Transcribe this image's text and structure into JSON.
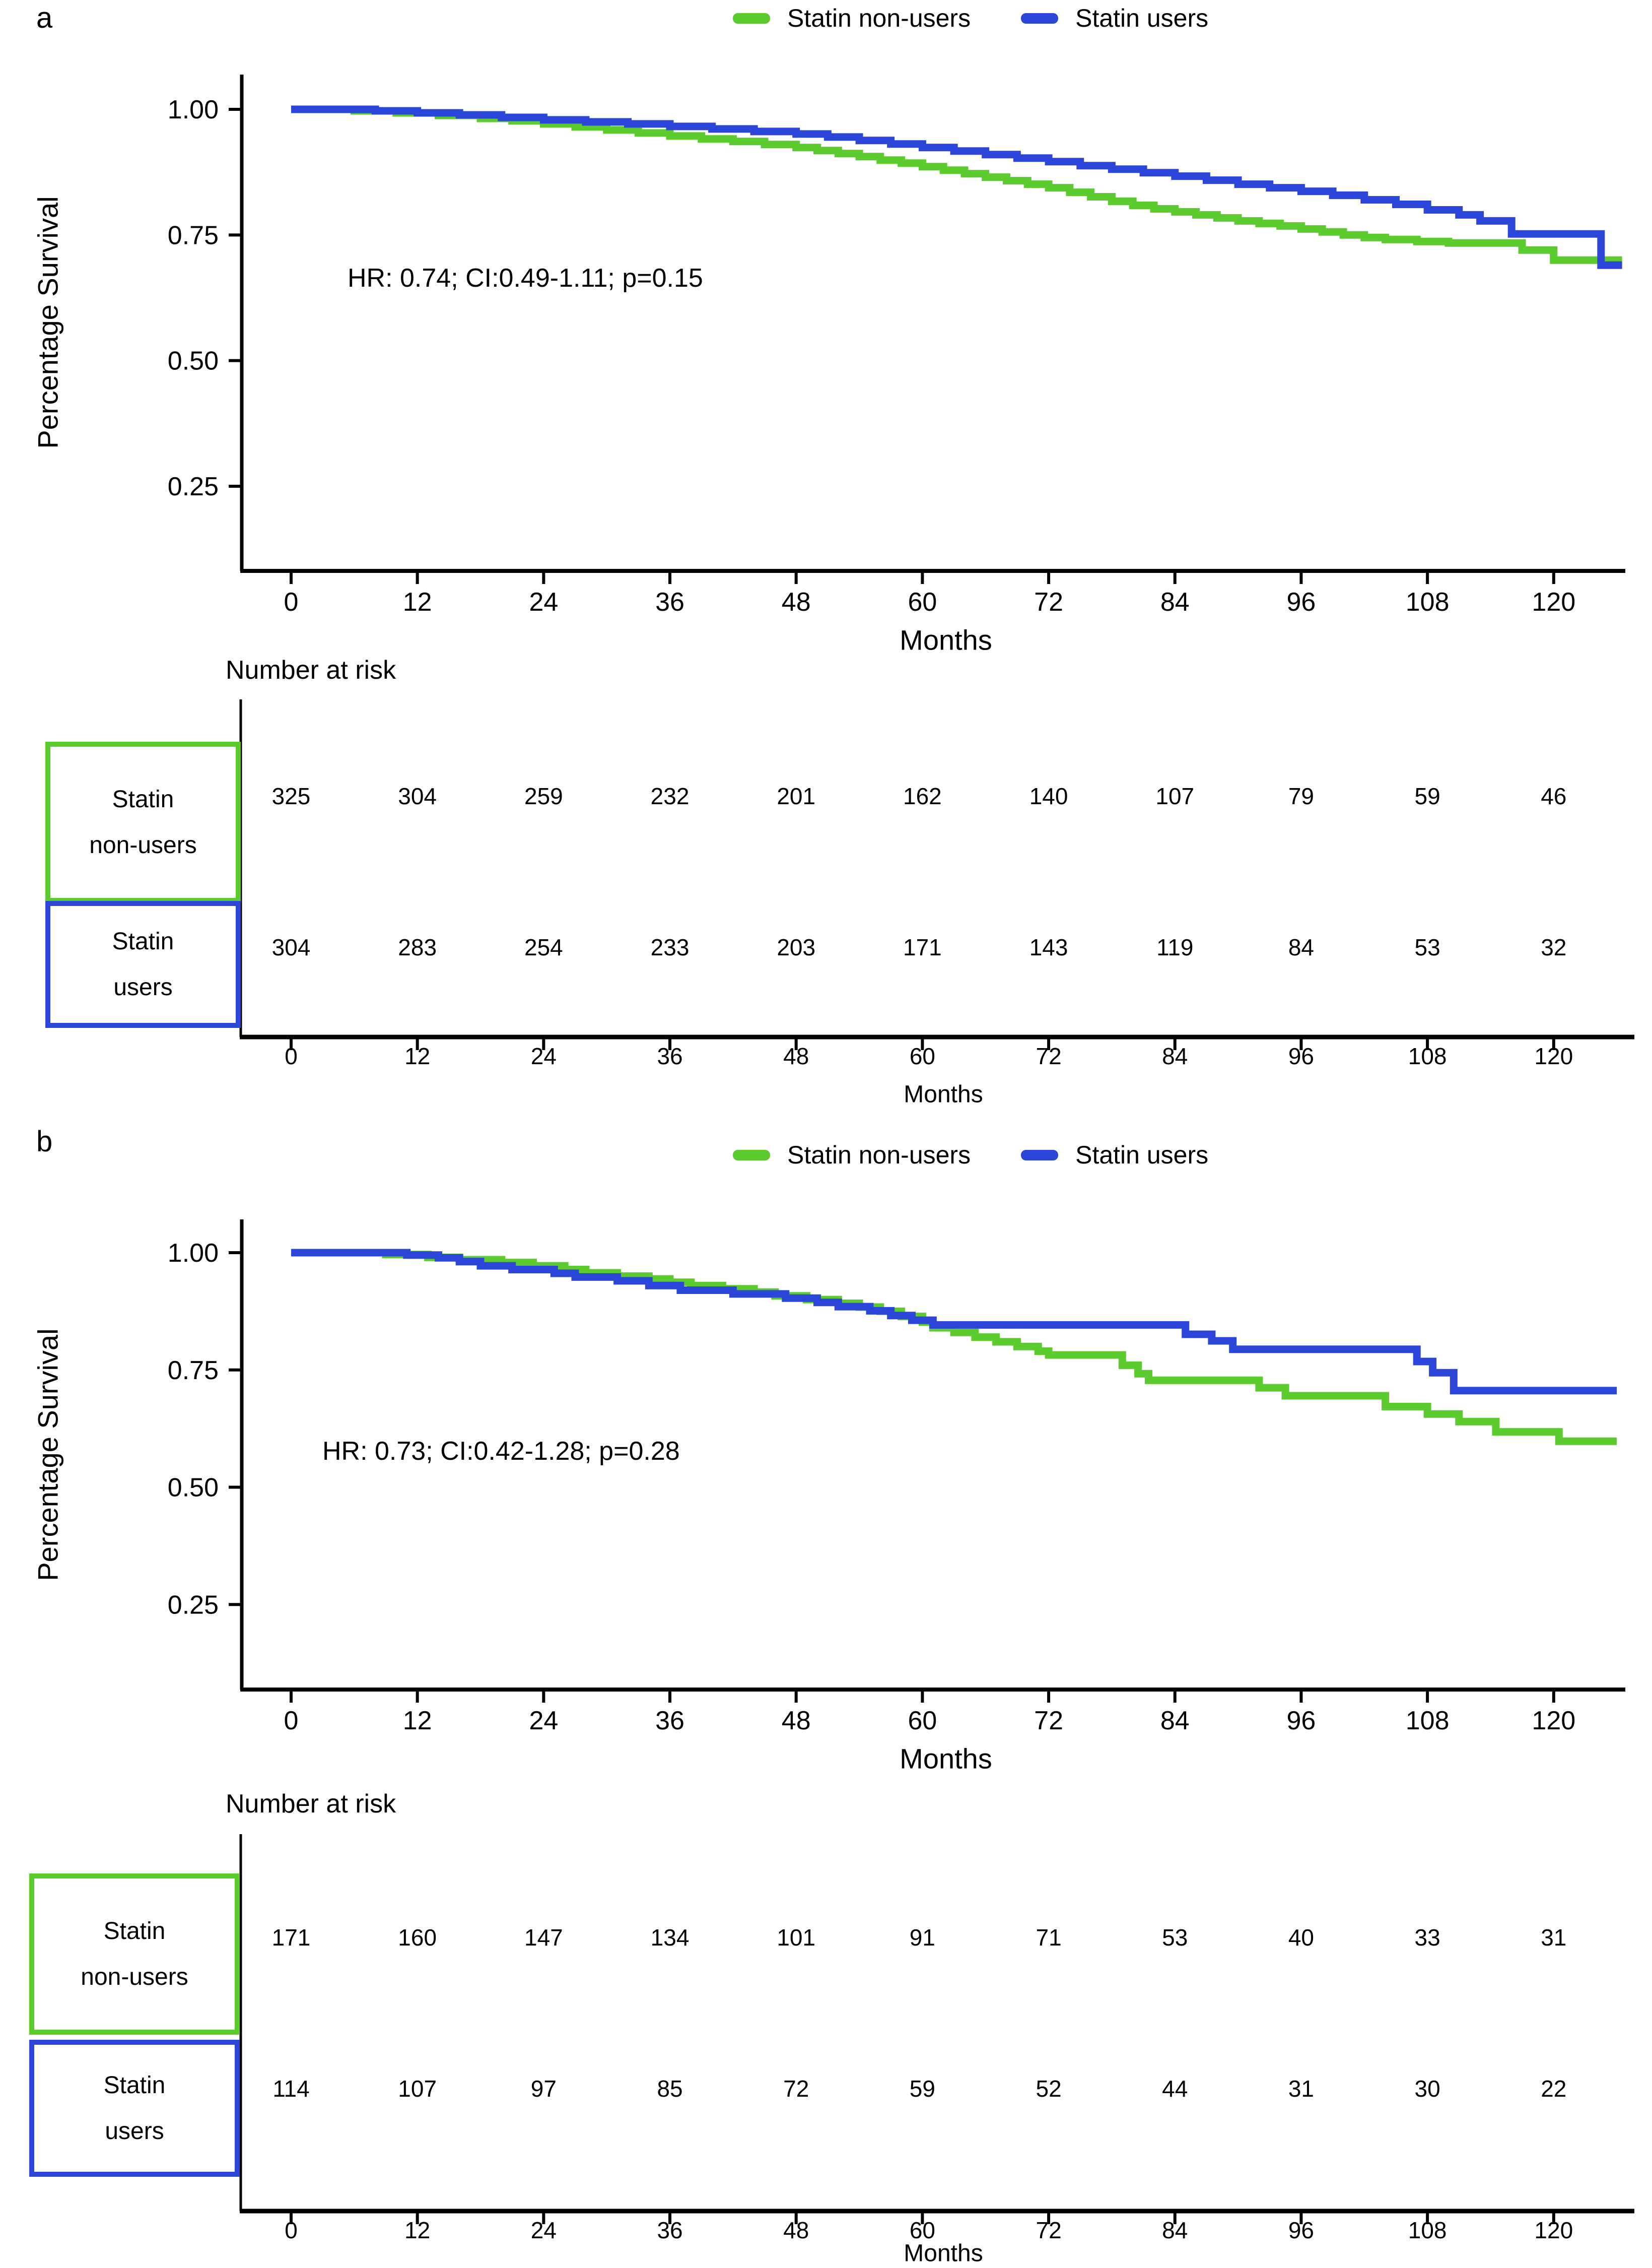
{
  "colors": {
    "green": "#5BCB2D",
    "blue": "#2B46D9",
    "axis": "#000000",
    "background": "#FFFFFF"
  },
  "figure": {
    "panels": [
      {
        "letter": "a",
        "ylabel": "Percentage Survival",
        "xlabel": "Months",
        "annotation": "HR: 0.74; CI:0.49-1.11; p=0.15",
        "legend": [
          {
            "label": "Statin non-users",
            "color": "#5BCB2D"
          },
          {
            "label": "Statin users",
            "color": "#2B46D9"
          }
        ],
        "risk_table": {
          "title": "Number at risk",
          "xlabel": "Months",
          "months": [
            0,
            12,
            24,
            36,
            48,
            60,
            72,
            84,
            96,
            108,
            120
          ],
          "rows": [
            {
              "label_lines": [
                "Statin",
                "non-users"
              ],
              "color": "#5BCB2D",
              "values": [
                325,
                304,
                259,
                232,
                201,
                162,
                140,
                107,
                79,
                59,
                46
              ]
            },
            {
              "label_lines": [
                "Statin",
                "users"
              ],
              "color": "#2B46D9",
              "values": [
                304,
                283,
                254,
                233,
                203,
                171,
                143,
                119,
                84,
                53,
                32
              ]
            }
          ]
        }
      },
      {
        "letter": "b",
        "ylabel": "Percentage Survival",
        "xlabel": "Months",
        "annotation": "HR: 0.73; CI:0.42-1.28; p=0.28",
        "legend": [
          {
            "label": "Statin non-users",
            "color": "#5BCB2D"
          },
          {
            "label": "Statin users",
            "color": "#2B46D9"
          }
        ],
        "risk_table": {
          "title": "Number at risk",
          "xlabel": "Months",
          "months": [
            0,
            12,
            24,
            36,
            48,
            60,
            72,
            84,
            96,
            108,
            120
          ],
          "rows": [
            {
              "label_lines": [
                "Statin",
                "non-users"
              ],
              "color": "#5BCB2D",
              "values": [
                171,
                160,
                147,
                134,
                101,
                91,
                71,
                53,
                40,
                33,
                31
              ]
            },
            {
              "label_lines": [
                "Statin",
                "users"
              ],
              "color": "#2B46D9",
              "values": [
                114,
                107,
                97,
                85,
                72,
                59,
                52,
                44,
                31,
                30,
                22
              ]
            }
          ]
        }
      }
    ]
  },
  "chart_data": [
    {
      "type": "line",
      "subtype": "kaplan-meier-step",
      "panel": "a",
      "title": "",
      "xlabel": "Months",
      "ylabel": "Percentage Survival",
      "xlim": [
        0,
        126.5
      ],
      "ylim": [
        0,
        1.0
      ],
      "grid": false,
      "legend_position": "top-center",
      "annotation": "HR: 0.74; CI:0.49-1.11; p=0.15",
      "x_ticks": [
        0,
        12,
        24,
        36,
        48,
        60,
        72,
        84,
        96,
        108,
        120
      ],
      "y_ticks": [
        {
          "v": 1.0,
          "label": "1.00"
        },
        {
          "v": 0.75,
          "label": "0.75"
        },
        {
          "v": 0.5,
          "label": "0.50"
        },
        {
          "v": 0.25,
          "label": "0.25"
        }
      ],
      "series": [
        {
          "name": "Statin non-users",
          "color": "#5BCB2D",
          "steps": [
            [
              0,
              1.0
            ],
            [
              6,
              0.997
            ],
            [
              10,
              0.993
            ],
            [
              14,
              0.988
            ],
            [
              18,
              0.982
            ],
            [
              21,
              0.977
            ],
            [
              24,
              0.971
            ],
            [
              27,
              0.965
            ],
            [
              30,
              0.959
            ],
            [
              33,
              0.953
            ],
            [
              36,
              0.947
            ],
            [
              39,
              0.941
            ],
            [
              42,
              0.936
            ],
            [
              45,
              0.93
            ],
            [
              48,
              0.924
            ],
            [
              50,
              0.918
            ],
            [
              52,
              0.912
            ],
            [
              54,
              0.906
            ],
            [
              56,
              0.899
            ],
            [
              58,
              0.893
            ],
            [
              60,
              0.886
            ],
            [
              62,
              0.879
            ],
            [
              64,
              0.872
            ],
            [
              66,
              0.865
            ],
            [
              68,
              0.858
            ],
            [
              70,
              0.851
            ],
            [
              72,
              0.844
            ],
            [
              74,
              0.835
            ],
            [
              76,
              0.826
            ],
            [
              78,
              0.817
            ],
            [
              80,
              0.809
            ],
            [
              82,
              0.802
            ],
            [
              84,
              0.796
            ],
            [
              86,
              0.79
            ],
            [
              88,
              0.784
            ],
            [
              90,
              0.778
            ],
            [
              92,
              0.773
            ],
            [
              94,
              0.768
            ],
            [
              96,
              0.762
            ],
            [
              98,
              0.756
            ],
            [
              100,
              0.75
            ],
            [
              102,
              0.745
            ],
            [
              104,
              0.741
            ],
            [
              107,
              0.737
            ],
            [
              110,
              0.734
            ],
            [
              117,
              0.72
            ],
            [
              120,
              0.7
            ],
            [
              126.5,
              0.7
            ]
          ]
        },
        {
          "name": "Statin users",
          "color": "#2B46D9",
          "steps": [
            [
              0,
              1.0
            ],
            [
              8,
              0.997
            ],
            [
              12,
              0.993
            ],
            [
              16,
              0.989
            ],
            [
              20,
              0.984
            ],
            [
              24,
              0.979
            ],
            [
              28,
              0.975
            ],
            [
              32,
              0.971
            ],
            [
              36,
              0.966
            ],
            [
              40,
              0.961
            ],
            [
              44,
              0.956
            ],
            [
              48,
              0.951
            ],
            [
              51,
              0.945
            ],
            [
              54,
              0.938
            ],
            [
              57,
              0.931
            ],
            [
              60,
              0.924
            ],
            [
              63,
              0.917
            ],
            [
              66,
              0.91
            ],
            [
              69,
              0.903
            ],
            [
              72,
              0.896
            ],
            [
              75,
              0.888
            ],
            [
              78,
              0.881
            ],
            [
              81,
              0.874
            ],
            [
              84,
              0.867
            ],
            [
              87,
              0.859
            ],
            [
              90,
              0.851
            ],
            [
              93,
              0.844
            ],
            [
              96,
              0.837
            ],
            [
              99,
              0.829
            ],
            [
              102,
              0.82
            ],
            [
              105,
              0.811
            ],
            [
              108,
              0.8
            ],
            [
              111,
              0.79
            ],
            [
              113,
              0.778
            ],
            [
              116,
              0.752
            ],
            [
              124.5,
              0.69
            ],
            [
              126.5,
              0.69
            ]
          ]
        }
      ],
      "number_at_risk": {
        "months": [
          0,
          12,
          24,
          36,
          48,
          60,
          72,
          84,
          96,
          108,
          120
        ],
        "rows": [
          {
            "name": "Statin non-users",
            "values": [
              325,
              304,
              259,
              232,
              201,
              162,
              140,
              107,
              79,
              59,
              46
            ]
          },
          {
            "name": "Statin users",
            "values": [
              304,
              283,
              254,
              233,
              203,
              171,
              143,
              119,
              84,
              53,
              32
            ]
          }
        ]
      }
    },
    {
      "type": "line",
      "subtype": "kaplan-meier-step",
      "panel": "b",
      "title": "",
      "xlabel": "Months",
      "ylabel": "Percentage Survival",
      "xlim": [
        0,
        126
      ],
      "ylim": [
        0,
        1.0
      ],
      "grid": false,
      "legend_position": "top-center",
      "annotation": "HR: 0.73; CI:0.42-1.28; p=0.28",
      "x_ticks": [
        0,
        12,
        24,
        36,
        48,
        60,
        72,
        84,
        96,
        108,
        120
      ],
      "y_ticks": [
        {
          "v": 1.0,
          "label": "1.00"
        },
        {
          "v": 0.75,
          "label": "0.75"
        },
        {
          "v": 0.5,
          "label": "0.50"
        },
        {
          "v": 0.25,
          "label": "0.25"
        }
      ],
      "series": [
        {
          "name": "Statin non-users",
          "color": "#5BCB2D",
          "steps": [
            [
              0,
              1.0
            ],
            [
              9,
              0.996
            ],
            [
              13,
              0.99
            ],
            [
              16,
              0.985
            ],
            [
              20,
              0.979
            ],
            [
              23,
              0.972
            ],
            [
              26,
              0.964
            ],
            [
              28,
              0.957
            ],
            [
              31,
              0.95
            ],
            [
              34,
              0.944
            ],
            [
              36,
              0.937
            ],
            [
              38,
              0.93
            ],
            [
              41,
              0.923
            ],
            [
              44,
              0.916
            ],
            [
              46,
              0.908
            ],
            [
              49,
              0.9
            ],
            [
              52,
              0.892
            ],
            [
              54,
              0.884
            ],
            [
              56,
              0.875
            ],
            [
              58,
              0.864
            ],
            [
              60,
              0.852
            ],
            [
              61,
              0.84
            ],
            [
              63,
              0.83
            ],
            [
              65,
              0.82
            ],
            [
              67,
              0.81
            ],
            [
              69,
              0.8
            ],
            [
              71,
              0.79
            ],
            [
              72,
              0.782
            ],
            [
              79,
              0.76
            ],
            [
              80.5,
              0.742
            ],
            [
              81.5,
              0.728
            ],
            [
              92,
              0.712
            ],
            [
              94.5,
              0.695
            ],
            [
              104,
              0.672
            ],
            [
              108,
              0.656
            ],
            [
              111,
              0.64
            ],
            [
              114.5,
              0.618
            ],
            [
              120.5,
              0.598
            ],
            [
              126,
              0.598
            ]
          ]
        },
        {
          "name": "Statin users",
          "color": "#2B46D9",
          "steps": [
            [
              0,
              1.0
            ],
            [
              11,
              0.995
            ],
            [
              14,
              0.989
            ],
            [
              16,
              0.981
            ],
            [
              18,
              0.972
            ],
            [
              21,
              0.964
            ],
            [
              25,
              0.956
            ],
            [
              27,
              0.948
            ],
            [
              31,
              0.94
            ],
            [
              34,
              0.93
            ],
            [
              37,
              0.92
            ],
            [
              42,
              0.912
            ],
            [
              47,
              0.903
            ],
            [
              50,
              0.894
            ],
            [
              52,
              0.885
            ],
            [
              55,
              0.876
            ],
            [
              57,
              0.866
            ],
            [
              59,
              0.856
            ],
            [
              61,
              0.846
            ],
            [
              85,
              0.826
            ],
            [
              87.5,
              0.812
            ],
            [
              89.5,
              0.794
            ],
            [
              107,
              0.768
            ],
            [
              108.5,
              0.744
            ],
            [
              110.5,
              0.706
            ],
            [
              126,
              0.706
            ]
          ]
        }
      ],
      "number_at_risk": {
        "months": [
          0,
          12,
          24,
          36,
          48,
          60,
          72,
          84,
          96,
          108,
          120
        ],
        "rows": [
          {
            "name": "Statin non-users",
            "values": [
              171,
              160,
              147,
              134,
              101,
              91,
              71,
              53,
              40,
              33,
              31
            ]
          },
          {
            "name": "Statin users",
            "values": [
              114,
              107,
              97,
              85,
              72,
              59,
              52,
              44,
              31,
              30,
              22
            ]
          }
        ]
      }
    }
  ]
}
